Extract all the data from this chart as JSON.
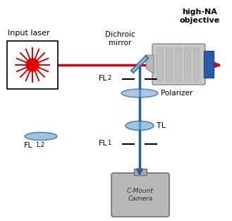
{
  "bg_color": "#ffffff",
  "labels": {
    "input_laser": "Input laser",
    "dichroic_mirror": "Dichroic\nmirror",
    "high_na": "high-NA\nobjective",
    "fl2": "FL",
    "fl2_sub": "2",
    "fl12": "FL",
    "fl12_sub": "1,2",
    "fl1": "FL",
    "fl1_sub": "1",
    "tl": "TL",
    "polarizer": "Polarizer",
    "camera": "C-Mount\nCamera"
  },
  "red_beam": "#dd0000",
  "blue_beam": "#5b8fce",
  "blue_dark": "#2060a0",
  "laser_star": "#dd0000",
  "dichroic_color": "#7aaad0",
  "lens_color": "#7aaad0",
  "text_dark": "#000000"
}
